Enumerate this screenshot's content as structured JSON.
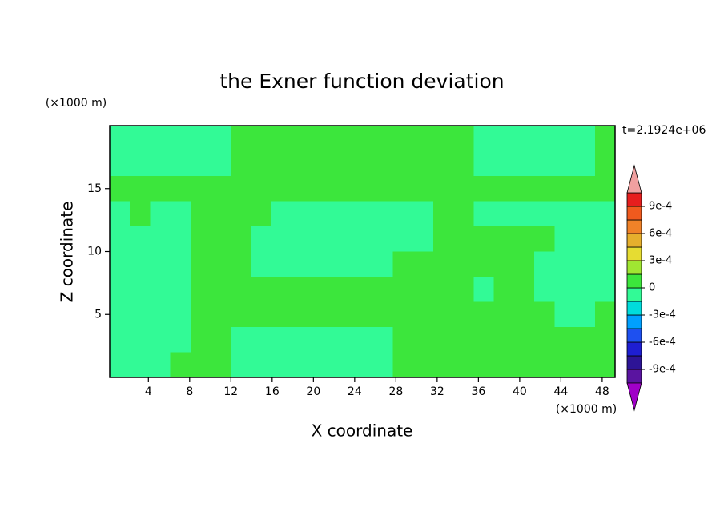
{
  "chart_data": {
    "type": "contour",
    "title": "the Exner function deviation",
    "x_label": "X coordinate",
    "y_label": "Z coordinate",
    "x_unit": "(×1000 m)",
    "y_unit": "(×1000 m)",
    "annotation": "t=2.1924e+06",
    "xlim": [
      0.25,
      49.25
    ],
    "ylim": [
      0,
      20
    ],
    "xticks": [
      4,
      8,
      12,
      16,
      20,
      24,
      28,
      32,
      36,
      40,
      44,
      48
    ],
    "yticks": [
      5,
      10,
      15
    ],
    "z": [
      [
        -5e-05,
        -5e-05,
        -5e-05,
        -5e-05,
        -5e-05,
        -5e-05,
        5e-05,
        5e-05,
        5e-05,
        5e-05,
        5e-05,
        5e-05,
        5e-05,
        5e-05,
        5e-05,
        5e-05,
        5e-05,
        5e-05,
        -5e-05,
        -5e-05,
        -5e-05,
        -5e-05,
        -5e-05,
        -5e-05,
        5e-05
      ],
      [
        -5e-05,
        -5e-05,
        -5e-05,
        -5e-05,
        -5e-05,
        -5e-05,
        5e-05,
        5e-05,
        5e-05,
        5e-05,
        5e-05,
        5e-05,
        5e-05,
        5e-05,
        5e-05,
        5e-05,
        5e-05,
        5e-05,
        -5e-05,
        -5e-05,
        -5e-05,
        -5e-05,
        -5e-05,
        -5e-05,
        5e-05
      ],
      [
        5e-05,
        5e-05,
        5e-05,
        5e-05,
        5e-05,
        5e-05,
        5e-05,
        5e-05,
        5e-05,
        5e-05,
        5e-05,
        5e-05,
        5e-05,
        5e-05,
        5e-05,
        5e-05,
        5e-05,
        5e-05,
        5e-05,
        5e-05,
        5e-05,
        5e-05,
        5e-05,
        5e-05,
        5e-05
      ],
      [
        -5e-05,
        5e-05,
        -5e-05,
        -5e-05,
        5e-05,
        5e-05,
        5e-05,
        5e-05,
        -5e-05,
        -5e-05,
        -5e-05,
        -5e-05,
        -5e-05,
        -5e-05,
        -5e-05,
        -5e-05,
        5e-05,
        5e-05,
        -5e-05,
        -5e-05,
        -5e-05,
        -5e-05,
        -5e-05,
        -5e-05,
        -5e-05
      ],
      [
        -5e-05,
        -5e-05,
        -5e-05,
        -5e-05,
        5e-05,
        5e-05,
        5e-05,
        -5e-05,
        -5e-05,
        -5e-05,
        -5e-05,
        -5e-05,
        -5e-05,
        -5e-05,
        -5e-05,
        -5e-05,
        5e-05,
        5e-05,
        5e-05,
        5e-05,
        5e-05,
        5e-05,
        -5e-05,
        -5e-05,
        -5e-05
      ],
      [
        -5e-05,
        -5e-05,
        -5e-05,
        -5e-05,
        5e-05,
        5e-05,
        5e-05,
        -5e-05,
        -5e-05,
        -5e-05,
        -5e-05,
        -5e-05,
        -5e-05,
        -5e-05,
        5e-05,
        5e-05,
        5e-05,
        5e-05,
        5e-05,
        5e-05,
        5e-05,
        -5e-05,
        -5e-05,
        -5e-05,
        -5e-05
      ],
      [
        -5e-05,
        -5e-05,
        -5e-05,
        -5e-05,
        5e-05,
        5e-05,
        5e-05,
        5e-05,
        5e-05,
        5e-05,
        5e-05,
        5e-05,
        5e-05,
        5e-05,
        5e-05,
        5e-05,
        5e-05,
        5e-05,
        -5e-05,
        5e-05,
        5e-05,
        -5e-05,
        -5e-05,
        -5e-05,
        -5e-05
      ],
      [
        -5e-05,
        -5e-05,
        -5e-05,
        -5e-05,
        5e-05,
        5e-05,
        5e-05,
        5e-05,
        5e-05,
        5e-05,
        5e-05,
        5e-05,
        5e-05,
        5e-05,
        5e-05,
        5e-05,
        5e-05,
        5e-05,
        5e-05,
        5e-05,
        5e-05,
        5e-05,
        -5e-05,
        -5e-05,
        5e-05
      ],
      [
        -5e-05,
        -5e-05,
        -5e-05,
        -5e-05,
        5e-05,
        5e-05,
        -5e-05,
        -5e-05,
        -5e-05,
        -5e-05,
        -5e-05,
        -5e-05,
        -5e-05,
        -5e-05,
        5e-05,
        5e-05,
        5e-05,
        5e-05,
        5e-05,
        5e-05,
        5e-05,
        5e-05,
        5e-05,
        5e-05,
        5e-05
      ],
      [
        -5e-05,
        -5e-05,
        -5e-05,
        5e-05,
        5e-05,
        5e-05,
        -5e-05,
        -5e-05,
        -5e-05,
        -5e-05,
        -5e-05,
        -5e-05,
        -5e-05,
        -5e-05,
        5e-05,
        5e-05,
        5e-05,
        5e-05,
        5e-05,
        5e-05,
        5e-05,
        5e-05,
        5e-05,
        5e-05,
        5e-05
      ]
    ],
    "levels": [
      -0.00105,
      -0.0009,
      -0.00075,
      -0.0006,
      -0.00045,
      -0.0003,
      -0.00015,
      0,
      0.00015,
      0.0003,
      0.00045,
      0.0006,
      0.00075,
      0.0009,
      0.00105
    ],
    "colors": [
      "#5a14a0",
      "#2d1496",
      "#1e1ed2",
      "#1e50f0",
      "#00a0ff",
      "#00dcdc",
      "#32fa96",
      "#3ce63c",
      "#a0e632",
      "#e6dc32",
      "#e6af2d",
      "#f08228",
      "#f05a1e",
      "#e61e1e"
    ],
    "under_color": "#a000c8",
    "over_color": "#f0a0a0",
    "colorbar_ticks": [
      {
        "value": 0.0009,
        "label": "9e-4"
      },
      {
        "value": 0.0006,
        "label": "6e-4"
      },
      {
        "value": 0.0003,
        "label": "3e-4"
      },
      0,
      {
        "value": -0.0003,
        "label": "-3e-4"
      },
      {
        "value": -0.0006,
        "label": "-6e-4"
      },
      {
        "value": -0.0009,
        "label": "-9e-4"
      }
    ]
  }
}
